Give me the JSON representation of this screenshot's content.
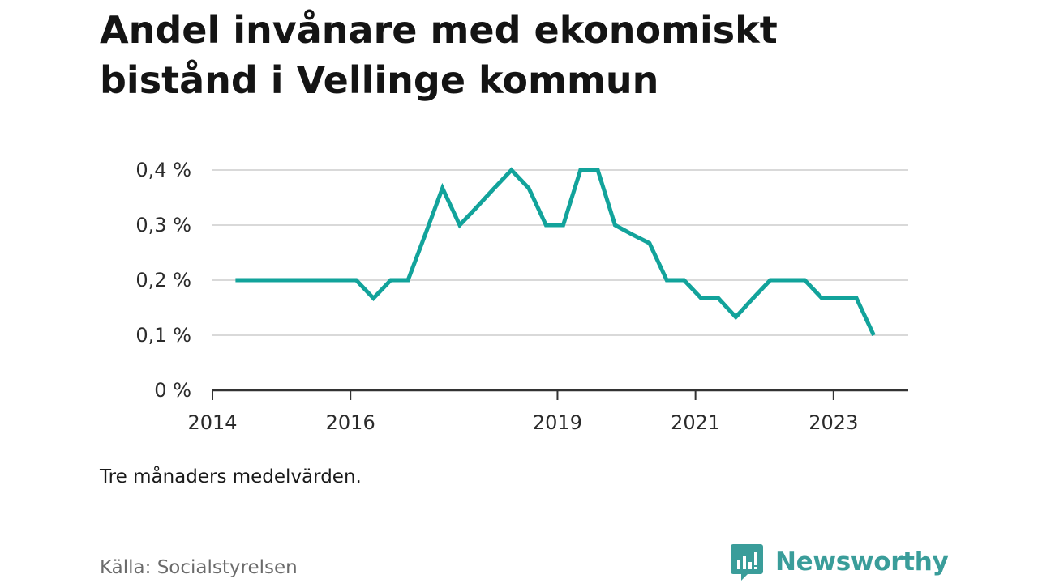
{
  "title": "Andel invånare med ekonomiskt bistånd i Vellinge kommun",
  "note": "Tre månaders medelvärden.",
  "source": "Källa: Socialstyrelsen",
  "brand": {
    "name": "Newsworthy",
    "icon": "newsworthy-logo-icon"
  },
  "colors": {
    "line": "#12a39b",
    "grid": "#d9d9d9",
    "axis": "#333333",
    "brand": "#3a9d9a"
  },
  "chart_data": {
    "type": "line",
    "title": "Andel invånare med ekonomiskt bistånd i Vellinge kommun",
    "xlabel": "",
    "ylabel": "",
    "xlim": [
      "2014-01",
      "2024-02"
    ],
    "ylim": [
      0,
      0.4
    ],
    "grid": true,
    "x_ticks": [
      {
        "x": "2014-01",
        "label": "2014"
      },
      {
        "x": "2016-01",
        "label": "2016"
      },
      {
        "x": "2019-01",
        "label": "2019"
      },
      {
        "x": "2021-01",
        "label": "2021"
      },
      {
        "x": "2023-01",
        "label": "2023"
      }
    ],
    "y_ticks": [
      {
        "y": 0,
        "label": "0 %"
      },
      {
        "y": 0.1,
        "label": "0,1 %"
      },
      {
        "y": 0.2,
        "label": "0,2 %"
      },
      {
        "y": 0.3,
        "label": "0,3 %"
      },
      {
        "y": 0.4,
        "label": "0,4 %"
      }
    ],
    "series": [
      {
        "points": [
          [
            "2014-05",
            0.2
          ],
          [
            "2014-08",
            0.2
          ],
          [
            "2014-11",
            0.2
          ],
          [
            "2015-02",
            0.2
          ],
          [
            "2015-05",
            0.2
          ],
          [
            "2015-08",
            0.2
          ],
          [
            "2015-11",
            0.2
          ],
          [
            "2016-02",
            0.2
          ],
          [
            "2016-05",
            0.167
          ],
          [
            "2016-08",
            0.2
          ],
          [
            "2016-11",
            0.2
          ],
          [
            "2017-02",
            0.283
          ],
          [
            "2017-05",
            0.367
          ],
          [
            "2017-08",
            0.3
          ],
          [
            "2017-11",
            0.333
          ],
          [
            "2018-02",
            0.367
          ],
          [
            "2018-05",
            0.4
          ],
          [
            "2018-08",
            0.367
          ],
          [
            "2018-11",
            0.3
          ],
          [
            "2019-02",
            0.3
          ],
          [
            "2019-05",
            0.4
          ],
          [
            "2019-08",
            0.4
          ],
          [
            "2019-11",
            0.3
          ],
          [
            "2020-02",
            0.283
          ],
          [
            "2020-05",
            0.267
          ],
          [
            "2020-08",
            0.2
          ],
          [
            "2020-11",
            0.2
          ],
          [
            "2021-02",
            0.167
          ],
          [
            "2021-05",
            0.167
          ],
          [
            "2021-08",
            0.133
          ],
          [
            "2021-11",
            0.167
          ],
          [
            "2022-02",
            0.2
          ],
          [
            "2022-05",
            0.2
          ],
          [
            "2022-08",
            0.2
          ],
          [
            "2022-11",
            0.167
          ],
          [
            "2023-02",
            0.167
          ],
          [
            "2023-05",
            0.167
          ],
          [
            "2023-08",
            0.1
          ]
        ]
      }
    ]
  }
}
